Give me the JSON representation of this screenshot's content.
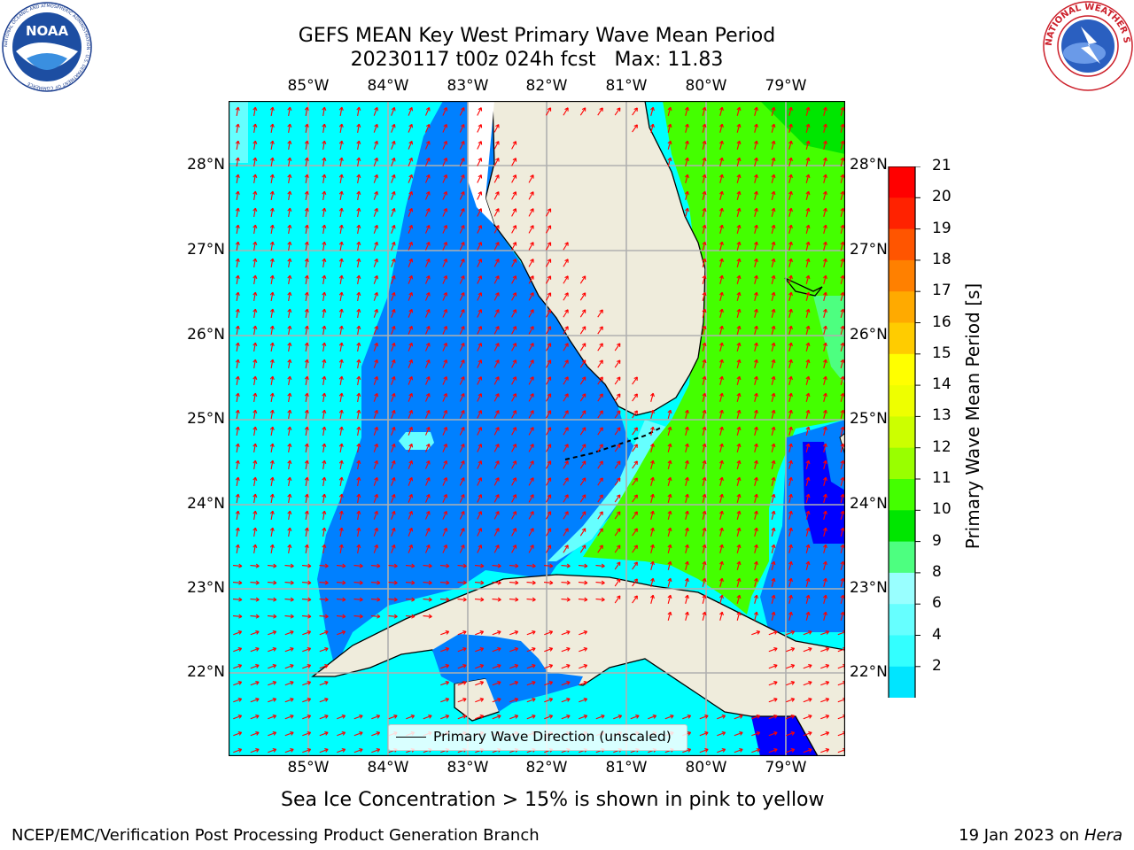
{
  "title": {
    "line1": "GEFS MEAN Key West Primary Wave Mean Period",
    "line2": "20230117 t00z 024h fcst   Max: 11.83"
  },
  "lon_labels": [
    "85°W",
    "84°W",
    "83°W",
    "82°W",
    "81°W",
    "80°W",
    "79°W"
  ],
  "lat_labels": [
    "28°N",
    "27°N",
    "26°N",
    "25°N",
    "24°N",
    "23°N",
    "22°N"
  ],
  "colorbar": {
    "title": "Primary Wave Mean Period [s]",
    "ticks": [
      "2",
      "4",
      "6",
      "8",
      "9",
      "10",
      "11",
      "12",
      "13",
      "14",
      "15",
      "16",
      "17",
      "18",
      "19",
      "20",
      "21"
    ],
    "colors": [
      "#0080ff",
      "#00e5ff",
      "#33ffff",
      "#66ffff",
      "#99ffff",
      "#4dff80",
      "#00e600",
      "#44ff00",
      "#99ff00",
      "#ccff00",
      "#eeff00",
      "#ffff00",
      "#ffcc00",
      "#ffaa00",
      "#ff8000",
      "#ff5500",
      "#ff2200",
      "#ff0000"
    ],
    "under_color": "#0000ff"
  },
  "legend": {
    "label": "Primary Wave Direction (unscaled)"
  },
  "note": "Sea Ice Concentration > 15% is shown in pink to yellow",
  "footer": {
    "left": "NCEP/EMC/Verification Post Processing Product Generation Branch",
    "date": "19 Jan 2023 on",
    "machine": "Hera"
  },
  "logos": {
    "noaa_text": "NOAA",
    "noaa_ring": "NATIONAL OCEANIC AND ATMOSPHERIC ADMINISTRATION · U.S. DEPARTMENT OF COMMERCE",
    "nws_ring": "NATIONAL WEATHER SERVICE"
  },
  "colors": {
    "land": "#efecdc",
    "arrow": "#ff0000",
    "grid": "#b0b0b0",
    "deep_blue": "#0080ff",
    "cyan": "#00ffff",
    "green": "#44ff00"
  }
}
